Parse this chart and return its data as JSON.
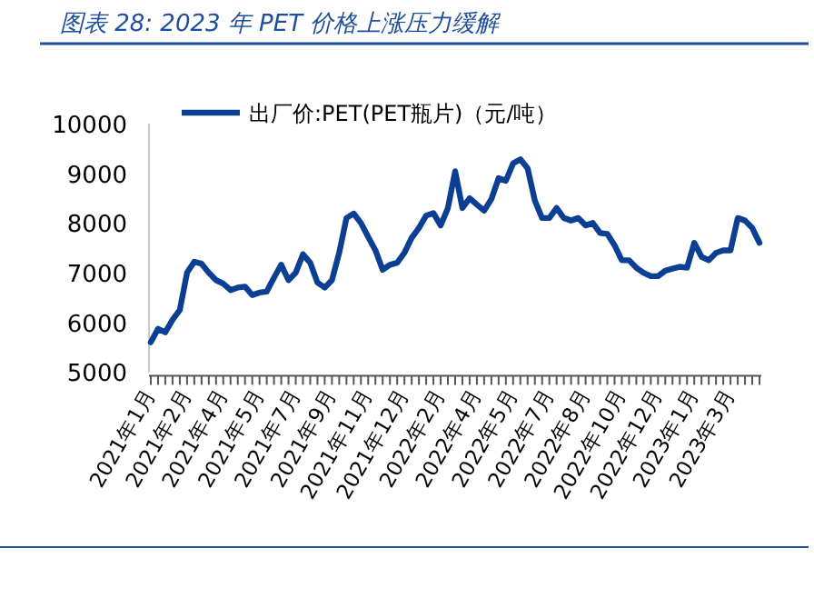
{
  "chart_data": {
    "type": "line",
    "title": "图表 28:  2023 年 PET 价格上涨压力缓解",
    "categories": [
      "2021年1月",
      null,
      null,
      null,
      null,
      "2021年2月",
      null,
      null,
      null,
      null,
      "2021年4月",
      null,
      null,
      null,
      null,
      "2021年5月",
      null,
      null,
      null,
      null,
      "2021年7月",
      null,
      null,
      null,
      null,
      "2021年9月",
      null,
      null,
      null,
      null,
      "2021年11月",
      null,
      null,
      null,
      null,
      "2021年12月",
      null,
      null,
      null,
      null,
      "2022年2月",
      null,
      null,
      null,
      null,
      "2022年4月",
      null,
      null,
      null,
      null,
      "2022年5月",
      null,
      null,
      null,
      null,
      "2022年7月",
      null,
      null,
      null,
      null,
      "2022年8月",
      null,
      null,
      null,
      null,
      "2022年10月",
      null,
      null,
      null,
      null,
      "2022年12月",
      null,
      null,
      null,
      null,
      "2023年1月",
      null,
      null,
      null,
      null,
      "2023年3月",
      null,
      null,
      null,
      null
    ],
    "series": [
      {
        "name": "出厂价:PET(PET瓶片)（元/吨）",
        "color": "#0b3f94",
        "values": [
          5600,
          5870,
          5800,
          6050,
          6250,
          7000,
          7220,
          7180,
          7000,
          6850,
          6780,
          6650,
          6700,
          6720,
          6550,
          6600,
          6620,
          6900,
          7160,
          6850,
          7000,
          7370,
          7200,
          6800,
          6700,
          6850,
          7400,
          8100,
          8190,
          8000,
          7720,
          7450,
          7060,
          7160,
          7200,
          7400,
          7700,
          7900,
          8150,
          8200,
          7950,
          8300,
          9040,
          8300,
          8500,
          8370,
          8250,
          8480,
          8900,
          8850,
          9200,
          9280,
          9100,
          8450,
          8100,
          8100,
          8300,
          8100,
          8050,
          8100,
          7950,
          8000,
          7800,
          7780,
          7550,
          7250,
          7250,
          7100,
          7000,
          6930,
          6930,
          7040,
          7080,
          7120,
          7100,
          7600,
          7320,
          7250,
          7400,
          7450,
          7450,
          8100,
          8050,
          7900,
          7600
        ]
      }
    ],
    "ylim": [
      5000,
      10000
    ],
    "yticks": [
      5000,
      6000,
      7000,
      8000,
      9000,
      10000
    ],
    "legend": "top"
  }
}
